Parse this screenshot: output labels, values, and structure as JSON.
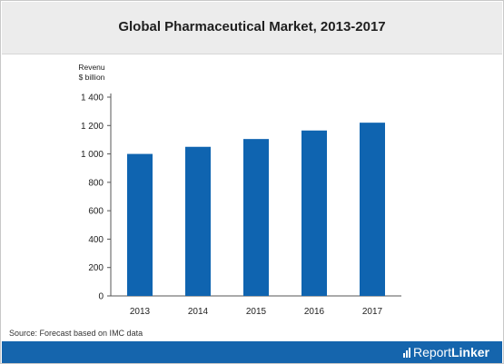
{
  "header": {
    "title": "Global Pharmaceutical Market, 2013-2017"
  },
  "source_text": "Source: Forecast based on IMC data",
  "footer": {
    "brand_prefix": "Report",
    "brand_suffix": "Linker"
  },
  "colors": {
    "bar": "#0f64b0",
    "footer": "#1565ad",
    "title_band": "#ececec"
  },
  "chart_data": {
    "type": "bar",
    "title": "Global Pharmaceutical Market, 2013-2017",
    "ylabel_lines": [
      "Revenu",
      "$ billion"
    ],
    "categories": [
      "2013",
      "2014",
      "2015",
      "2016",
      "2017"
    ],
    "values": [
      1000,
      1050,
      1105,
      1165,
      1220
    ],
    "ylim": [
      0,
      1400
    ],
    "yticks": [
      0,
      200,
      400,
      600,
      800,
      1000,
      1200,
      1400
    ],
    "ytick_labels": [
      "0",
      "200",
      "400",
      "600",
      "800",
      "1 000",
      "1 200",
      "1 400"
    ],
    "grid": false,
    "legend": "none"
  }
}
